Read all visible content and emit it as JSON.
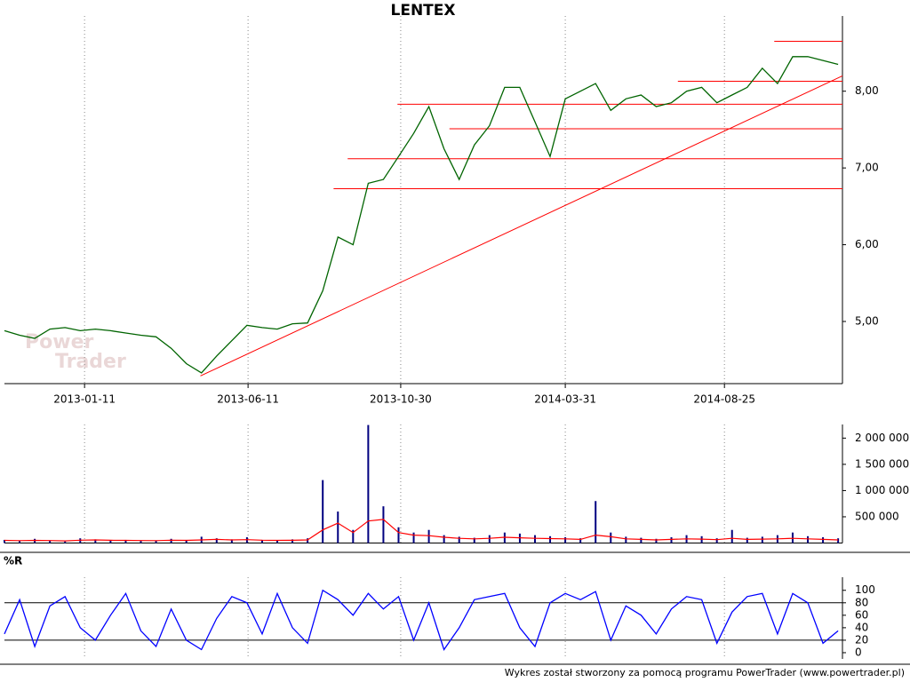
{
  "chart_data": [
    {
      "type": "line",
      "title": "LENTEX",
      "x": [
        "2012-10-29",
        "2012-11-12",
        "2012-11-26",
        "2012-12-10",
        "2012-12-24",
        "2013-01-07",
        "2013-01-21",
        "2013-02-04",
        "2013-02-18",
        "2013-03-04",
        "2013-03-18",
        "2013-04-01",
        "2013-04-15",
        "2013-04-29",
        "2013-05-13",
        "2013-05-27",
        "2013-06-10",
        "2013-06-24",
        "2013-07-08",
        "2013-07-22",
        "2013-08-05",
        "2013-08-19",
        "2013-09-02",
        "2013-09-16",
        "2013-09-30",
        "2013-10-14",
        "2013-10-28",
        "2013-11-11",
        "2013-11-25",
        "2013-12-09",
        "2013-12-23",
        "2014-01-06",
        "2014-01-20",
        "2014-02-03",
        "2014-02-17",
        "2014-03-03",
        "2014-03-17",
        "2014-03-31",
        "2014-04-14",
        "2014-04-28",
        "2014-05-12",
        "2014-05-26",
        "2014-06-09",
        "2014-06-23",
        "2014-07-07",
        "2014-07-21",
        "2014-08-04",
        "2014-08-18",
        "2014-09-01",
        "2014-09-15",
        "2014-09-29",
        "2014-10-13",
        "2014-10-27",
        "2014-11-10",
        "2014-11-24",
        "2014-12-08"
      ],
      "values": [
        4.88,
        4.82,
        4.78,
        4.9,
        4.92,
        4.88,
        4.9,
        4.88,
        4.85,
        4.82,
        4.8,
        4.65,
        4.45,
        4.33,
        4.55,
        4.75,
        4.95,
        4.92,
        4.9,
        4.97,
        4.98,
        5.4,
        6.1,
        6.0,
        6.8,
        6.85,
        7.15,
        7.45,
        7.8,
        7.25,
        6.85,
        7.3,
        7.55,
        8.05,
        8.05,
        7.6,
        7.15,
        7.9,
        8.0,
        8.1,
        7.75,
        7.9,
        7.95,
        7.8,
        7.85,
        8.0,
        8.05,
        7.85,
        7.95,
        8.05,
        8.3,
        8.1,
        8.45,
        8.45,
        8.4,
        8.35
      ],
      "color": "#006400",
      "xlim": [
        "2012-10-29",
        "2014-12-12"
      ],
      "ylim": [
        4.19,
        8.98
      ],
      "xticks": [
        "2013-01-11",
        "2013-06-11",
        "2013-10-30",
        "2014-03-31",
        "2014-08-25"
      ],
      "yticks": [
        {
          "value": 5,
          "label": "5,00"
        },
        {
          "value": 6,
          "label": "6,00"
        },
        {
          "value": 7,
          "label": "7,00"
        },
        {
          "value": 8,
          "label": "8,00"
        }
      ],
      "grid": "x",
      "levels": [
        {
          "value": 8.65,
          "from": "2014-10-10"
        },
        {
          "value": 8.13,
          "from": "2014-07-13"
        },
        {
          "value": 7.83,
          "from": "2013-10-27"
        },
        {
          "value": 7.51,
          "from": "2013-12-14"
        },
        {
          "value": 7.12,
          "from": "2013-09-11"
        },
        {
          "value": 6.73,
          "from": "2013-08-29"
        }
      ],
      "level_color": "#ff0000",
      "trend": {
        "x": [
          "2013-04-28",
          "2014-12-12"
        ],
        "values": [
          4.29,
          8.2
        ],
        "color": "#ff0000"
      },
      "watermark": [
        "Power",
        "Trader"
      ]
    },
    {
      "type": "bar",
      "series": [
        {
          "color": "#000080",
          "values": [
            60000,
            40000,
            80000,
            50000,
            30000,
            90000,
            70000,
            50000,
            60000,
            40000,
            50000,
            80000,
            60000,
            120000,
            90000,
            70000,
            110000,
            60000,
            50000,
            70000,
            90000,
            1200000,
            600000,
            250000,
            2250000,
            700000,
            300000,
            200000,
            250000,
            150000,
            120000,
            100000,
            150000,
            200000,
            180000,
            150000,
            130000,
            110000,
            90000,
            800000,
            200000,
            120000,
            100000,
            80000,
            110000,
            150000,
            130000,
            90000,
            250000,
            100000,
            120000,
            150000,
            200000,
            130000,
            110000,
            90000
          ]
        },
        {
          "type": "line",
          "color": "#ff0000",
          "values": [
            50000,
            45000,
            50000,
            48000,
            40000,
            55000,
            60000,
            52000,
            50000,
            48000,
            45000,
            55000,
            50000,
            60000,
            70000,
            60000,
            65000,
            55000,
            50000,
            52000,
            60000,
            250000,
            380000,
            200000,
            420000,
            450000,
            200000,
            150000,
            140000,
            110000,
            90000,
            80000,
            90000,
            110000,
            100000,
            90000,
            85000,
            80000,
            70000,
            150000,
            120000,
            80000,
            70000,
            60000,
            70000,
            80000,
            75000,
            65000,
            90000,
            70000,
            75000,
            80000,
            90000,
            80000,
            70000,
            60000
          ]
        }
      ],
      "ylim": [
        0,
        2260000
      ],
      "yticks": [
        {
          "value": 500000,
          "label": "500 000"
        },
        {
          "value": 1000000,
          "label": "1 000 000"
        },
        {
          "value": 1500000,
          "label": "1 500 000"
        },
        {
          "value": 2000000,
          "label": "2 000 000"
        }
      ]
    },
    {
      "type": "line",
      "title": "%R",
      "values": [
        30,
        85,
        10,
        75,
        90,
        40,
        20,
        60,
        95,
        35,
        10,
        70,
        20,
        5,
        55,
        90,
        80,
        30,
        95,
        40,
        15,
        100,
        85,
        60,
        95,
        70,
        90,
        20,
        80,
        5,
        40,
        85,
        90,
        95,
        40,
        10,
        80,
        95,
        85,
        98,
        20,
        75,
        60,
        30,
        70,
        90,
        85,
        15,
        65,
        90,
        95,
        30,
        95,
        80,
        15,
        35
      ],
      "color": "#0000ff",
      "ylim": [
        -10,
        121
      ],
      "yticks": [
        0,
        20,
        40,
        60,
        80,
        100
      ],
      "levels": [
        {
          "value": 20
        },
        {
          "value": 80
        }
      ],
      "level_color": "#000000"
    }
  ],
  "footer": "Wykres został stworzony za pomocą programu PowerTrader (www.powertrader.pl)"
}
